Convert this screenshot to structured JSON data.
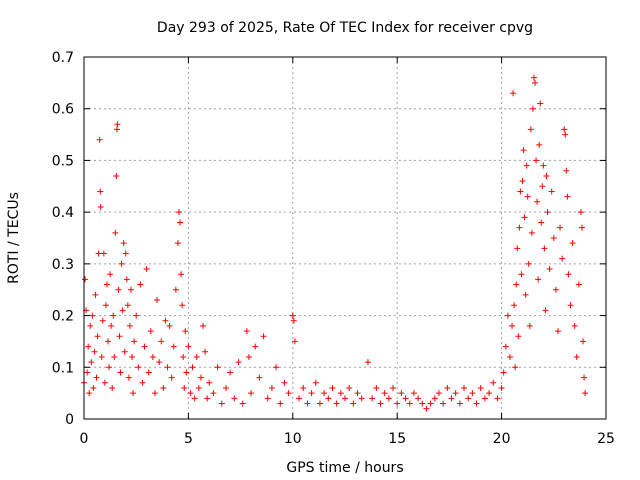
{
  "chart_data": {
    "type": "scatter",
    "title": "Day 293 of 2025, Rate Of TEC Index for receiver cpvg",
    "xlabel": "GPS time / hours",
    "ylabel": "ROTI / TECUs",
    "xlim": [
      0,
      25
    ],
    "ylim": [
      0,
      0.7
    ],
    "xticks": [
      0,
      5,
      10,
      15,
      20,
      25
    ],
    "xtick_labels": [
      "0",
      "5",
      "10",
      "15",
      "20",
      "25"
    ],
    "yticks": [
      0,
      0.1,
      0.2,
      0.3,
      0.4,
      0.5,
      0.6,
      0.7
    ],
    "ytick_labels": [
      "0",
      "0.1",
      "0.2",
      "0.3",
      "0.4",
      "0.5",
      "0.6",
      "0.7"
    ],
    "grid": true,
    "marker": "+",
    "series": [
      {
        "name": "ROTI",
        "color": "#ff0000",
        "points": [
          [
            0.0,
            0.07
          ],
          [
            0.05,
            0.27
          ],
          [
            0.1,
            0.21
          ],
          [
            0.15,
            0.09
          ],
          [
            0.2,
            0.14
          ],
          [
            0.25,
            0.05
          ],
          [
            0.3,
            0.18
          ],
          [
            0.35,
            0.11
          ],
          [
            0.4,
            0.2
          ],
          [
            0.45,
            0.06
          ],
          [
            0.5,
            0.13
          ],
          [
            0.55,
            0.24
          ],
          [
            0.6,
            0.08
          ],
          [
            0.65,
            0.16
          ],
          [
            0.7,
            0.32
          ],
          [
            0.75,
            0.54
          ],
          [
            0.78,
            0.44
          ],
          [
            0.8,
            0.41
          ],
          [
            0.85,
            0.12
          ],
          [
            0.9,
            0.19
          ],
          [
            0.95,
            0.32
          ],
          [
            1.0,
            0.07
          ],
          [
            1.05,
            0.22
          ],
          [
            1.1,
            0.26
          ],
          [
            1.15,
            0.15
          ],
          [
            1.2,
            0.1
          ],
          [
            1.25,
            0.28
          ],
          [
            1.3,
            0.18
          ],
          [
            1.35,
            0.06
          ],
          [
            1.4,
            0.2
          ],
          [
            1.45,
            0.12
          ],
          [
            1.5,
            0.36
          ],
          [
            1.55,
            0.47
          ],
          [
            1.58,
            0.56
          ],
          [
            1.6,
            0.57
          ],
          [
            1.65,
            0.25
          ],
          [
            1.7,
            0.16
          ],
          [
            1.75,
            0.09
          ],
          [
            1.8,
            0.3
          ],
          [
            1.85,
            0.21
          ],
          [
            1.9,
            0.34
          ],
          [
            1.95,
            0.13
          ],
          [
            2.0,
            0.32
          ],
          [
            2.05,
            0.27
          ],
          [
            2.1,
            0.22
          ],
          [
            2.15,
            0.08
          ],
          [
            2.2,
            0.18
          ],
          [
            2.25,
            0.25
          ],
          [
            2.3,
            0.12
          ],
          [
            2.35,
            0.05
          ],
          [
            2.4,
            0.15
          ],
          [
            2.5,
            0.2
          ],
          [
            2.6,
            0.1
          ],
          [
            2.7,
            0.26
          ],
          [
            2.8,
            0.07
          ],
          [
            2.9,
            0.14
          ],
          [
            3.0,
            0.29
          ],
          [
            3.1,
            0.09
          ],
          [
            3.2,
            0.17
          ],
          [
            3.3,
            0.12
          ],
          [
            3.4,
            0.05
          ],
          [
            3.5,
            0.23
          ],
          [
            3.6,
            0.11
          ],
          [
            3.7,
            0.15
          ],
          [
            3.8,
            0.06
          ],
          [
            3.9,
            0.19
          ],
          [
            4.0,
            0.1
          ],
          [
            4.1,
            0.18
          ],
          [
            4.2,
            0.08
          ],
          [
            4.3,
            0.14
          ],
          [
            4.4,
            0.25
          ],
          [
            4.5,
            0.34
          ],
          [
            4.55,
            0.4
          ],
          [
            4.6,
            0.38
          ],
          [
            4.65,
            0.28
          ],
          [
            4.7,
            0.22
          ],
          [
            4.75,
            0.12
          ],
          [
            4.8,
            0.06
          ],
          [
            4.85,
            0.17
          ],
          [
            4.9,
            0.09
          ],
          [
            5.0,
            0.14
          ],
          [
            5.1,
            0.05
          ],
          [
            5.2,
            0.1
          ],
          [
            5.3,
            0.04
          ],
          [
            5.4,
            0.12
          ],
          [
            5.5,
            0.06
          ],
          [
            5.6,
            0.08
          ],
          [
            5.7,
            0.18
          ],
          [
            5.8,
            0.13
          ],
          [
            5.9,
            0.04
          ],
          [
            6.0,
            0.07
          ],
          [
            6.2,
            0.05
          ],
          [
            6.4,
            0.1
          ],
          [
            6.6,
            0.03
          ],
          [
            6.8,
            0.06
          ],
          [
            7.0,
            0.09
          ],
          [
            7.2,
            0.04
          ],
          [
            7.4,
            0.11
          ],
          [
            7.6,
            0.03
          ],
          [
            7.8,
            0.17
          ],
          [
            7.9,
            0.12
          ],
          [
            8.0,
            0.05
          ],
          [
            8.2,
            0.14
          ],
          [
            8.4,
            0.08
          ],
          [
            8.6,
            0.16
          ],
          [
            8.8,
            0.04
          ],
          [
            9.0,
            0.06
          ],
          [
            9.2,
            0.1
          ],
          [
            9.4,
            0.03
          ],
          [
            9.6,
            0.07
          ],
          [
            9.8,
            0.05
          ],
          [
            10.0,
            0.2
          ],
          [
            10.05,
            0.19
          ],
          [
            10.1,
            0.15
          ],
          [
            10.3,
            0.04
          ],
          [
            10.5,
            0.06
          ],
          [
            10.7,
            0.03
          ],
          [
            10.9,
            0.05
          ],
          [
            11.1,
            0.07
          ],
          [
            11.3,
            0.03
          ],
          [
            11.5,
            0.05
          ],
          [
            11.7,
            0.04
          ],
          [
            11.9,
            0.06
          ],
          [
            12.1,
            0.03
          ],
          [
            12.3,
            0.05
          ],
          [
            12.5,
            0.04
          ],
          [
            12.7,
            0.06
          ],
          [
            12.9,
            0.03
          ],
          [
            13.1,
            0.05
          ],
          [
            13.3,
            0.04
          ],
          [
            13.6,
            0.11
          ],
          [
            13.8,
            0.04
          ],
          [
            14.0,
            0.06
          ],
          [
            14.2,
            0.03
          ],
          [
            14.4,
            0.05
          ],
          [
            14.6,
            0.04
          ],
          [
            14.8,
            0.06
          ],
          [
            15.0,
            0.03
          ],
          [
            15.2,
            0.05
          ],
          [
            15.4,
            0.04
          ],
          [
            15.6,
            0.03
          ],
          [
            15.8,
            0.05
          ],
          [
            16.0,
            0.04
          ],
          [
            16.2,
            0.03
          ],
          [
            16.4,
            0.02
          ],
          [
            16.6,
            0.03
          ],
          [
            16.8,
            0.04
          ],
          [
            17.0,
            0.05
          ],
          [
            17.2,
            0.03
          ],
          [
            17.4,
            0.06
          ],
          [
            17.6,
            0.04
          ],
          [
            17.8,
            0.05
          ],
          [
            18.0,
            0.03
          ],
          [
            18.2,
            0.06
          ],
          [
            18.4,
            0.04
          ],
          [
            18.6,
            0.05
          ],
          [
            18.8,
            0.03
          ],
          [
            19.0,
            0.06
          ],
          [
            19.2,
            0.04
          ],
          [
            19.4,
            0.05
          ],
          [
            19.6,
            0.07
          ],
          [
            19.8,
            0.04
          ],
          [
            20.0,
            0.06
          ],
          [
            20.1,
            0.09
          ],
          [
            20.2,
            0.14
          ],
          [
            20.3,
            0.2
          ],
          [
            20.4,
            0.12
          ],
          [
            20.5,
            0.18
          ],
          [
            20.55,
            0.63
          ],
          [
            20.6,
            0.22
          ],
          [
            20.65,
            0.1
          ],
          [
            20.7,
            0.26
          ],
          [
            20.75,
            0.33
          ],
          [
            20.8,
            0.16
          ],
          [
            20.85,
            0.37
          ],
          [
            20.9,
            0.44
          ],
          [
            20.95,
            0.28
          ],
          [
            21.0,
            0.46
          ],
          [
            21.05,
            0.52
          ],
          [
            21.1,
            0.39
          ],
          [
            21.15,
            0.24
          ],
          [
            21.2,
            0.49
          ],
          [
            21.25,
            0.43
          ],
          [
            21.3,
            0.3
          ],
          [
            21.35,
            0.18
          ],
          [
            21.4,
            0.56
          ],
          [
            21.45,
            0.36
          ],
          [
            21.5,
            0.6
          ],
          [
            21.55,
            0.66
          ],
          [
            21.6,
            0.65
          ],
          [
            21.65,
            0.5
          ],
          [
            21.7,
            0.42
          ],
          [
            21.75,
            0.27
          ],
          [
            21.8,
            0.53
          ],
          [
            21.85,
            0.61
          ],
          [
            21.9,
            0.38
          ],
          [
            21.95,
            0.45
          ],
          [
            22.0,
            0.49
          ],
          [
            22.05,
            0.33
          ],
          [
            22.1,
            0.21
          ],
          [
            22.15,
            0.47
          ],
          [
            22.2,
            0.4
          ],
          [
            22.3,
            0.29
          ],
          [
            22.4,
            0.44
          ],
          [
            22.5,
            0.35
          ],
          [
            22.6,
            0.25
          ],
          [
            22.7,
            0.17
          ],
          [
            22.8,
            0.37
          ],
          [
            22.9,
            0.31
          ],
          [
            23.0,
            0.56
          ],
          [
            23.05,
            0.55
          ],
          [
            23.1,
            0.48
          ],
          [
            23.15,
            0.43
          ],
          [
            23.2,
            0.28
          ],
          [
            23.3,
            0.22
          ],
          [
            23.4,
            0.34
          ],
          [
            23.5,
            0.18
          ],
          [
            23.6,
            0.12
          ],
          [
            23.7,
            0.26
          ],
          [
            23.8,
            0.4
          ],
          [
            23.85,
            0.37
          ],
          [
            23.9,
            0.15
          ],
          [
            23.95,
            0.08
          ],
          [
            24.0,
            0.05
          ]
        ]
      }
    ]
  }
}
